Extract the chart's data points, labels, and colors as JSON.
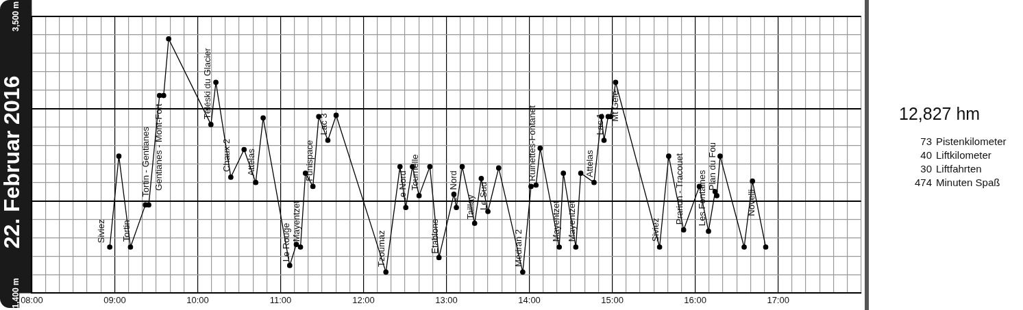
{
  "chart_data": {
    "type": "line",
    "title": "22. Februar 2016",
    "series": [
      {
        "color": "#000000",
        "x": [
          8.94,
          9.05,
          9.19,
          9.37,
          9.41,
          9.54,
          9.59,
          9.65,
          10.16,
          10.22,
          10.4,
          10.56,
          10.7,
          10.79,
          11.11,
          11.19,
          11.24,
          11.3,
          11.39,
          11.46,
          11.57,
          11.67,
          12.27,
          12.44,
          12.51,
          12.59,
          12.67,
          12.8,
          12.91,
          13.09,
          13.12,
          13.19,
          13.34,
          13.42,
          13.5,
          13.63,
          13.92,
          14.02,
          14.08,
          14.13,
          14.36,
          14.41,
          14.56,
          14.62,
          14.78,
          14.87,
          14.9,
          14.95,
          14.98,
          15.04,
          15.57,
          15.68,
          15.86,
          16.05,
          16.16,
          16.24,
          16.26,
          16.3,
          16.59,
          16.69,
          16.85
        ],
        "values": [
          1750,
          2440,
          1750,
          2070,
          2070,
          2900,
          2900,
          3330,
          2680,
          3000,
          2280,
          2490,
          2240,
          2730,
          1610,
          1770,
          1750,
          2310,
          2210,
          2740,
          2560,
          2750,
          1560,
          2360,
          2050,
          2360,
          2140,
          2360,
          1670,
          2150,
          2050,
          2360,
          1930,
          2270,
          2020,
          2350,
          1560,
          2210,
          2220,
          2500,
          1750,
          2310,
          1750,
          2310,
          2240,
          2740,
          2560,
          2740,
          2740,
          3000,
          1750,
          2440,
          1880,
          2210,
          1870,
          2170,
          2140,
          2440,
          1750,
          2250,
          1750
        ]
      }
    ],
    "xlim": [
      8,
      18
    ],
    "xticks": [
      {
        "value": 8,
        "label": "08:00"
      },
      {
        "value": 8.1667,
        "label": null
      },
      {
        "value": 8.3333,
        "label": null
      },
      {
        "value": 8.5,
        "label": null
      },
      {
        "value": 8.6667,
        "label": null
      },
      {
        "value": 8.8333,
        "label": null
      },
      {
        "value": 9,
        "label": "09:00"
      },
      {
        "value": 9.1667,
        "label": null
      },
      {
        "value": 9.3333,
        "label": null
      },
      {
        "value": 9.5,
        "label": null
      },
      {
        "value": 9.6667,
        "label": null
      },
      {
        "value": 9.8333,
        "label": null
      },
      {
        "value": 10,
        "label": "10:00"
      },
      {
        "value": 10.1667,
        "label": null
      },
      {
        "value": 10.3333,
        "label": null
      },
      {
        "value": 10.5,
        "label": null
      },
      {
        "value": 10.6667,
        "label": null
      },
      {
        "value": 10.8333,
        "label": null
      },
      {
        "value": 11,
        "label": "11:00"
      },
      {
        "value": 11.1667,
        "label": null
      },
      {
        "value": 11.3333,
        "label": null
      },
      {
        "value": 11.5,
        "label": null
      },
      {
        "value": 11.6667,
        "label": null
      },
      {
        "value": 11.8333,
        "label": null
      },
      {
        "value": 12,
        "label": "12:00"
      },
      {
        "value": 12.1667,
        "label": null
      },
      {
        "value": 12.3333,
        "label": null
      },
      {
        "value": 12.5,
        "label": null
      },
      {
        "value": 12.6667,
        "label": null
      },
      {
        "value": 12.8333,
        "label": null
      },
      {
        "value": 13,
        "label": "13:00"
      },
      {
        "value": 13.1667,
        "label": null
      },
      {
        "value": 13.3333,
        "label": null
      },
      {
        "value": 13.5,
        "label": null
      },
      {
        "value": 13.6667,
        "label": null
      },
      {
        "value": 13.8333,
        "label": null
      },
      {
        "value": 14,
        "label": "14:00"
      },
      {
        "value": 14.1667,
        "label": null
      },
      {
        "value": 14.3333,
        "label": null
      },
      {
        "value": 14.5,
        "label": null
      },
      {
        "value": 14.6667,
        "label": null
      },
      {
        "value": 14.8333,
        "label": null
      },
      {
        "value": 15,
        "label": "15:00"
      },
      {
        "value": 15.1667,
        "label": null
      },
      {
        "value": 15.3333,
        "label": null
      },
      {
        "value": 15.5,
        "label": null
      },
      {
        "value": 15.6667,
        "label": null
      },
      {
        "value": 15.8333,
        "label": null
      },
      {
        "value": 16,
        "label": "16:00"
      },
      {
        "value": 16.1667,
        "label": null
      },
      {
        "value": 16.3333,
        "label": null
      },
      {
        "value": 16.5,
        "label": null
      },
      {
        "value": 16.6667,
        "label": null
      },
      {
        "value": 16.8333,
        "label": null
      },
      {
        "value": 17,
        "label": "17:00"
      },
      {
        "value": 17.1667,
        "label": null
      },
      {
        "value": 17.3333,
        "label": null
      },
      {
        "value": 17.5,
        "label": null
      },
      {
        "value": 17.6667,
        "label": null
      },
      {
        "value": 17.8333,
        "label": null
      },
      {
        "value": 18,
        "label": null
      }
    ],
    "ylim": [
      1400,
      3500
    ],
    "yticks": [
      {
        "value": 1400,
        "label": "1,400 m"
      },
      {
        "value": 1540,
        "label": null
      },
      {
        "value": 1680,
        "label": null
      },
      {
        "value": 1820,
        "label": null
      },
      {
        "value": 1960,
        "label": null
      },
      {
        "value": 2100,
        "label": null
      },
      {
        "value": 2240,
        "label": null
      },
      {
        "value": 2380,
        "label": null
      },
      {
        "value": 2520,
        "label": null
      },
      {
        "value": 2660,
        "label": null
      },
      {
        "value": 2800,
        "label": null
      },
      {
        "value": 2940,
        "label": null
      },
      {
        "value": 3080,
        "label": null
      },
      {
        "value": 3220,
        "label": null
      },
      {
        "value": 3360,
        "label": null
      },
      {
        "value": 3500,
        "label": "3,500 m"
      }
    ],
    "grid": true,
    "legend": false,
    "marker": "circle",
    "line_style": "solid",
    "annotations": [
      {
        "text": "Siviez",
        "x": 8.9,
        "y": 1780
      },
      {
        "text": "Tortin",
        "x": 9.2,
        "y": 1790
      },
      {
        "text": "Tortin - Gentianes",
        "x": 9.43,
        "y": 2130
      },
      {
        "text": "Gentianes - Mont-Fort",
        "x": 9.54,
        "y": 2900
      },
      {
        "text": "Téléski du Glacier",
        "x": 10.18,
        "y": 2720
      },
      {
        "text": "Chaux 2",
        "x": 10.41,
        "y": 2320
      },
      {
        "text": "Attelas",
        "x": 10.71,
        "y": 2290
      },
      {
        "text": "Le Rouge",
        "x": 11.13,
        "y": 1640
      },
      {
        "text": "Mayentzet",
        "x": 11.25,
        "y": 1790
      },
      {
        "text": "Funispace",
        "x": 11.41,
        "y": 2250
      },
      {
        "text": "Lac 3",
        "x": 11.58,
        "y": 2600
      },
      {
        "text": "Tzoumaz",
        "x": 12.28,
        "y": 1600
      },
      {
        "text": "Le Nord",
        "x": 12.53,
        "y": 2090
      },
      {
        "text": "Tournelle",
        "x": 12.68,
        "y": 2180
      },
      {
        "text": "Etablons",
        "x": 12.92,
        "y": 1700
      },
      {
        "text": "Le Nord",
        "x": 13.14,
        "y": 2090
      },
      {
        "text": "Taillay",
        "x": 13.35,
        "y": 1960
      },
      {
        "text": "Le Sud",
        "x": 13.51,
        "y": 2030
      },
      {
        "text": "Médran 2",
        "x": 13.93,
        "y": 1600
      },
      {
        "text": "Ruinettes-Fontanet",
        "x": 14.09,
        "y": 2250
      },
      {
        "text": "Mayentzet",
        "x": 14.38,
        "y": 1790
      },
      {
        "text": "Mayentzet",
        "x": 14.57,
        "y": 1790
      },
      {
        "text": "Attelas",
        "x": 14.79,
        "y": 2280
      },
      {
        "text": "Lac 1",
        "x": 14.91,
        "y": 2600
      },
      {
        "text": "Mt Gelé",
        "x": 15.04,
        "y": 3000
      },
      {
        "text": "Siviez",
        "x": 15.58,
        "y": 1790
      },
      {
        "text": "Prarion - Tracouet",
        "x": 15.87,
        "y": 1920
      },
      {
        "text": "Les Fontaines",
        "x": 16.14,
        "y": 1910
      },
      {
        "text": "Plan du Fou",
        "x": 16.27,
        "y": 2180
      },
      {
        "text": "Novelli",
        "x": 16.69,
        "y": 2250
      },
      "12,827 hm",
      "73 Pistenkilometer",
      "40 Liftkilometer",
      "30 Liftfahrten",
      "474 Minuten Spaß"
    ]
  }
}
